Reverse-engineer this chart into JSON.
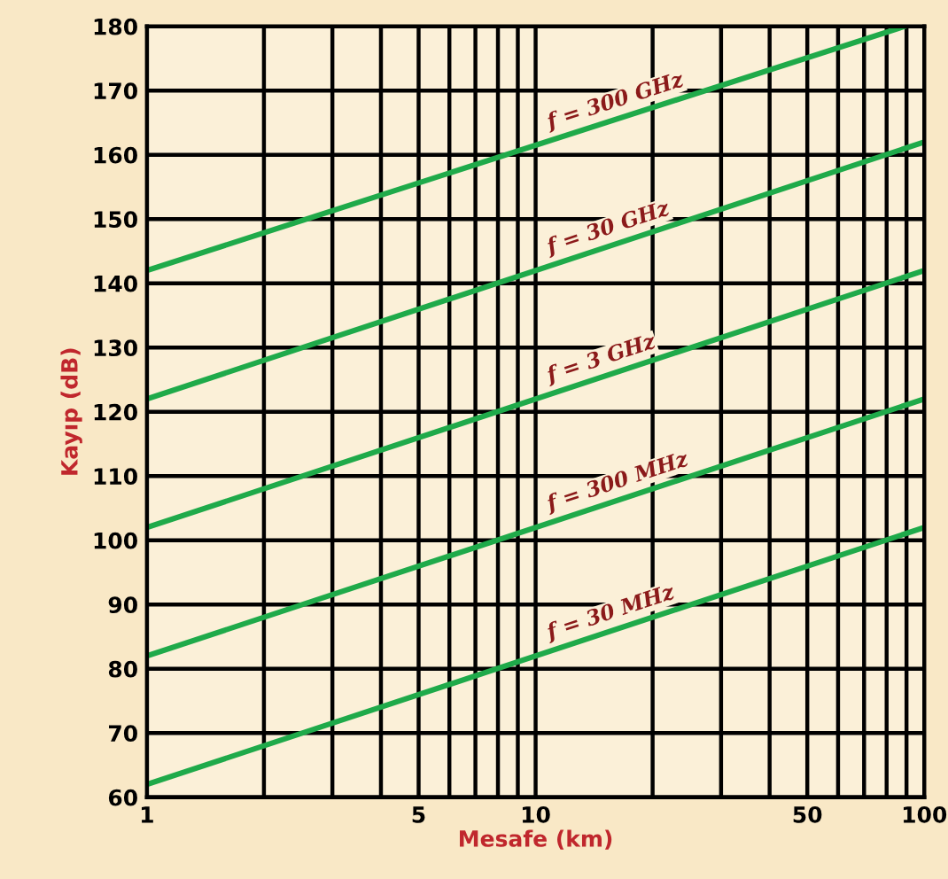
{
  "chart_data": {
    "type": "line",
    "xlabel": "Mesafe (km)",
    "ylabel": "Kayıp (dB)",
    "log": "x",
    "series": [
      {
        "name": "f = 30 MHz",
        "color": "#1faa4a",
        "x": [
          1,
          100
        ],
        "values": [
          62,
          102
        ]
      },
      {
        "name": "f = 300 MHz",
        "color": "#1faa4a",
        "x": [
          1,
          100
        ],
        "values": [
          82,
          122
        ]
      },
      {
        "name": "f = 3 GHz",
        "color": "#1faa4a",
        "x": [
          1,
          100
        ],
        "values": [
          102,
          142
        ]
      },
      {
        "name": "f = 30 GHz",
        "color": "#1faa4a",
        "x": [
          1,
          100
        ],
        "values": [
          122,
          162
        ]
      },
      {
        "name": "f = 300 GHz",
        "color": "#1faa4a",
        "x": [
          1,
          89
        ],
        "values": [
          142,
          180
        ]
      }
    ],
    "xlim": [
      1,
      100
    ],
    "ylim": [
      60,
      180
    ],
    "xticks": [
      1,
      {
        "value": 2,
        "label": null
      },
      {
        "value": 3,
        "label": null
      },
      {
        "value": 4,
        "label": null
      },
      5,
      {
        "value": 6,
        "label": null
      },
      {
        "value": 7,
        "label": null
      },
      {
        "value": 8,
        "label": null
      },
      {
        "value": 9,
        "label": null
      },
      10,
      {
        "value": 20,
        "label": null
      },
      {
        "value": 30,
        "label": null
      },
      {
        "value": 40,
        "label": null
      },
      50,
      {
        "value": 60,
        "label": null
      },
      {
        "value": 70,
        "label": null
      },
      {
        "value": 80,
        "label": null
      },
      {
        "value": 90,
        "label": null
      },
      100
    ],
    "yticks": [
      60,
      70,
      80,
      90,
      100,
      110,
      120,
      130,
      140,
      150,
      160,
      170,
      180
    ],
    "grid": true,
    "marker": "none",
    "line_style": "solid",
    "legend": false
  }
}
